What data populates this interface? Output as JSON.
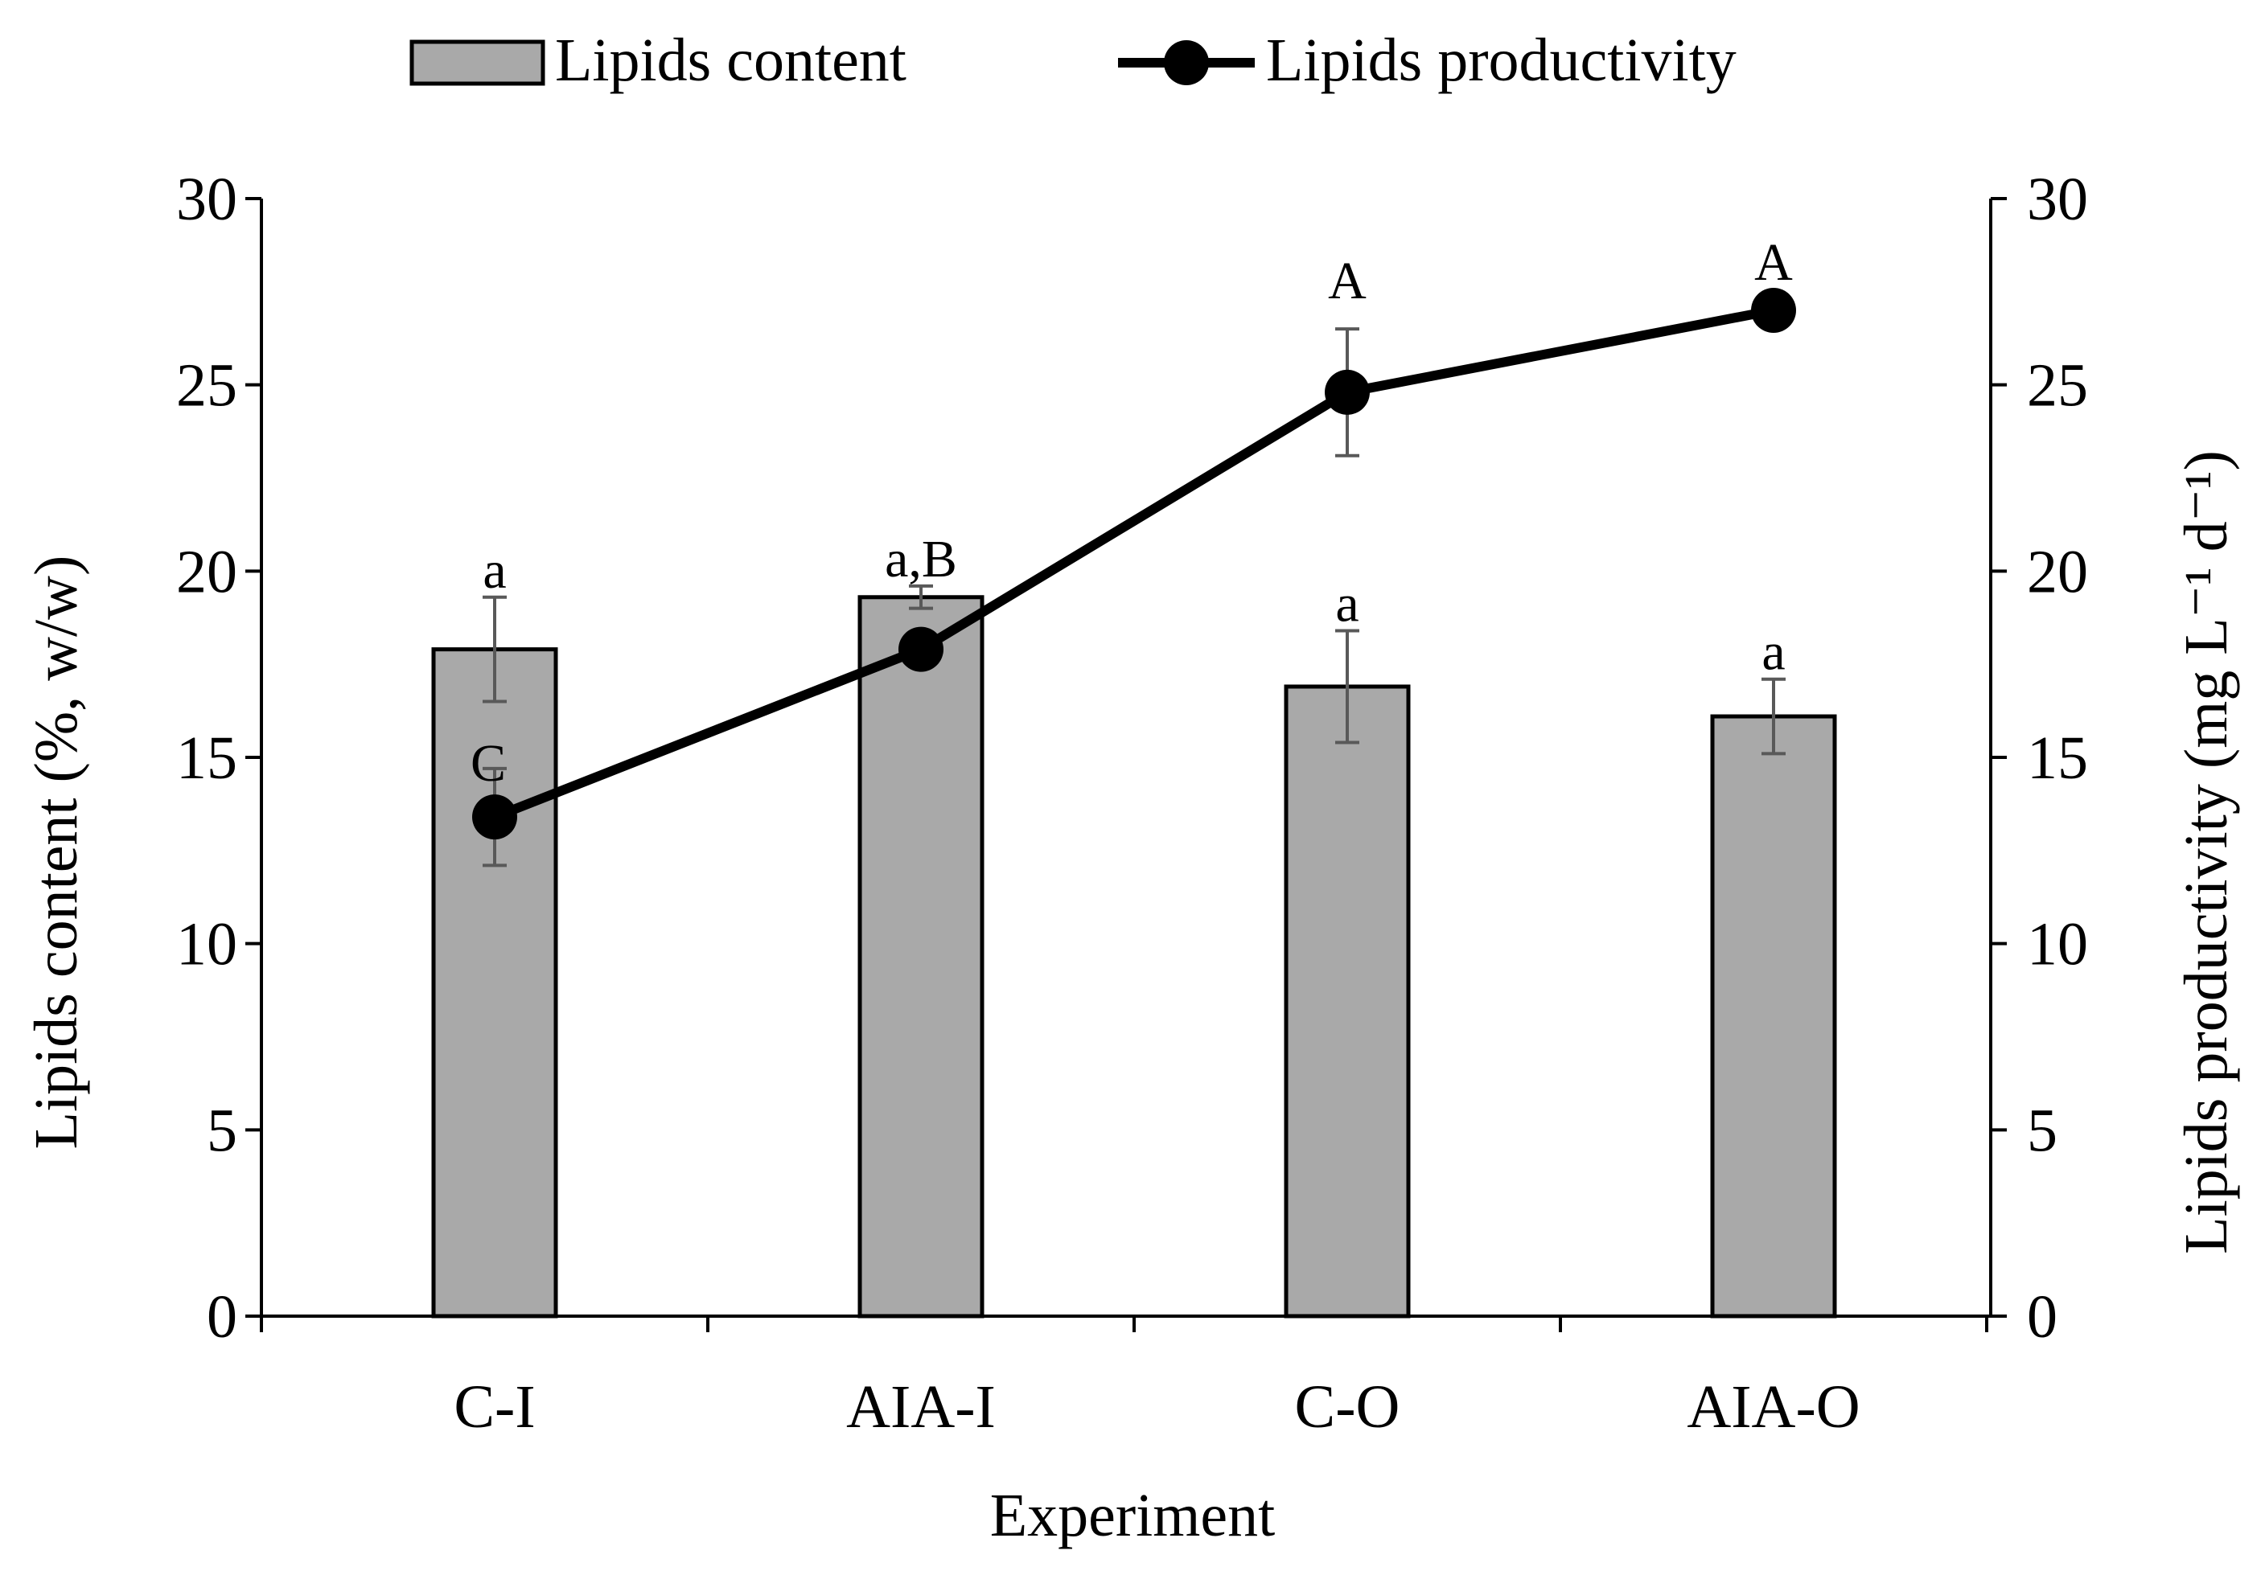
{
  "colors": {
    "bar_fill": "#a9a9a9",
    "bar_stroke": "#000000",
    "line": "#000000",
    "errorbar": "#595959",
    "axis": "#000000"
  },
  "chart_data": {
    "type": "bar",
    "categories": [
      "C-I",
      "AIA-I",
      "C-O",
      "AIA-O"
    ],
    "xlabel": "Experiment",
    "ylabel_left": "Lipids content (%, w/w)",
    "ylabel_right": "Lipids  productivity (mg L⁻¹ d⁻¹)",
    "ylim_left": [
      0,
      30
    ],
    "ylim_right": [
      0,
      30
    ],
    "yticks_left": [
      0,
      5,
      10,
      15,
      20,
      25,
      30
    ],
    "yticks_right": [
      0,
      5,
      10,
      15,
      20,
      25,
      30
    ],
    "legend": {
      "position": "top",
      "entries": [
        "Lipids content",
        "Lipids productivity"
      ]
    },
    "series": [
      {
        "name": "Lipids content",
        "type": "bar",
        "axis": "left",
        "values": [
          17.9,
          19.3,
          16.9,
          16.1
        ],
        "errors": [
          1.4,
          0.3,
          1.5,
          1.0
        ],
        "labels": [
          "a",
          "a,B",
          "a",
          "a"
        ]
      },
      {
        "name": "Lipids productivity",
        "type": "line",
        "axis": "right",
        "values": [
          13.4,
          17.9,
          24.8,
          27.0
        ],
        "errors": [
          1.3,
          0.3,
          1.7,
          0.0
        ],
        "labels": [
          "C",
          "",
          "A",
          "A"
        ]
      }
    ]
  }
}
